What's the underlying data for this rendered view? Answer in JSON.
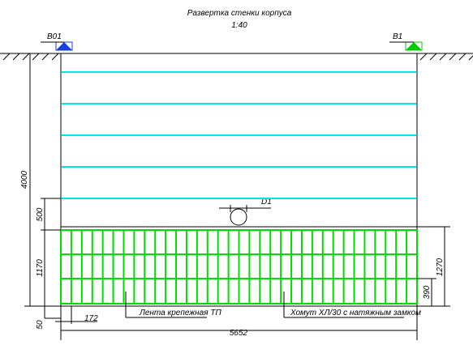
{
  "title": "Развертка стенки корпуса",
  "scale": "1:40",
  "markers": {
    "left": "В01",
    "right": "В1"
  },
  "dimensions": {
    "height": "4000",
    "upper_gap": "500",
    "band": "1170",
    "bottom_offset": "50",
    "left_offset": "172",
    "width": "5652",
    "right_height": "1270",
    "row": "390",
    "diameter": "D1"
  },
  "callouts": {
    "tape": "Лента крепежная ТП",
    "clamp": "Хомут ХЛ/30 с натяжным замком"
  }
}
